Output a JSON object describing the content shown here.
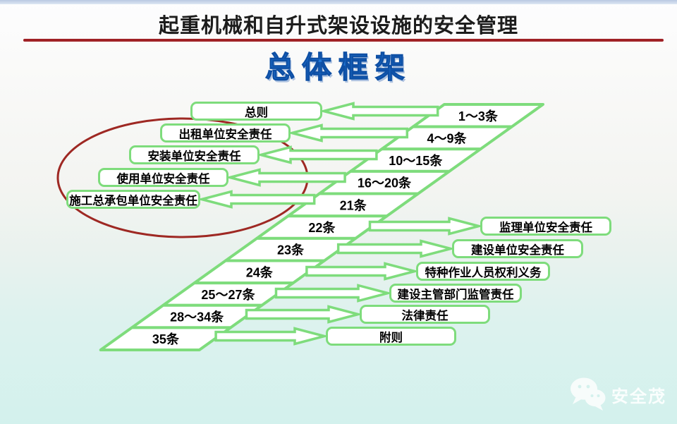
{
  "slide": {
    "header": {
      "title": "起重机械和自升式架设设施的安全管理"
    },
    "section_title": "总体框架",
    "watermark": {
      "brand": "安全茂",
      "icon": "wechat-icon"
    }
  },
  "diagram": {
    "type": "flow-mapping",
    "stair_rows": [
      {
        "label": "1～3条",
        "links_to": "总则",
        "direction": "left"
      },
      {
        "label": "4～9条",
        "links_to": "出租单位安全责任",
        "direction": "left"
      },
      {
        "label": "10～15条",
        "links_to": "安装单位安全责任",
        "direction": "left"
      },
      {
        "label": "16～20条",
        "links_to": "使用单位安全责任",
        "direction": "left"
      },
      {
        "label": "21条",
        "links_to": "施工总承包单位安全责任",
        "direction": "left"
      },
      {
        "label": "22条",
        "links_to": "监理单位安全责任",
        "direction": "right"
      },
      {
        "label": "23条",
        "links_to": "建设单位安全责任",
        "direction": "right"
      },
      {
        "label": "24条",
        "links_to": "特种作业人员权利义务",
        "direction": "right"
      },
      {
        "label": "25～27条",
        "links_to": "建设主管部门监管责任",
        "direction": "right"
      },
      {
        "label": "28～34条",
        "links_to": "法律责任",
        "direction": "right"
      },
      {
        "label": "35条",
        "links_to": "附则",
        "direction": "right"
      }
    ],
    "left_boxes": [
      "总则",
      "出租单位安全责任",
      "安装单位安全责任",
      "使用单位安全责任",
      "施工总承包单位安全责任"
    ],
    "right_boxes": [
      "监理单位安全责任",
      "建设单位安全责任",
      "特种作业人员权利义务",
      "建设主管部门监管责任",
      "法律责任",
      "附则"
    ],
    "highlight_ellipse": {
      "color": "#9e2823",
      "around": [
        "出租单位安全责任",
        "安装单位安全责任",
        "使用单位安全责任",
        "施工总承包单位安全责任"
      ]
    },
    "colors": {
      "shape_green": "#7edc7c",
      "highlight_red": "#9e2823",
      "divider_red": "#a02226",
      "title_blue": "#2277d6",
      "text_black": "#111111"
    }
  }
}
